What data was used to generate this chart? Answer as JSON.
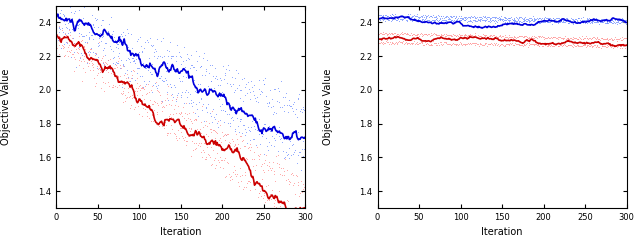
{
  "xlim": [
    0,
    300
  ],
  "ylim": [
    1.3,
    2.5
  ],
  "xlabel": "Iteration",
  "ylabel": "Objective Value",
  "xticks": [
    0,
    50,
    100,
    150,
    200,
    250,
    300
  ],
  "yticks": [
    1.4,
    1.6,
    1.8,
    2.0,
    2.2,
    2.4
  ],
  "blue_color": "#0000dd",
  "red_color": "#cc0000",
  "blue_dot_color": "#6688ff",
  "red_dot_color": "#ff8888",
  "bg_color": "#ffffff",
  "left_blue_solid_start": 2.43,
  "left_blue_solid_end": 1.72,
  "left_blue_dot_upper_start": 2.43,
  "left_blue_dot_upper_end": 1.88,
  "left_blue_dot_lower_start": 2.35,
  "left_blue_dot_lower_end": 1.6,
  "left_red_solid_start": 2.33,
  "left_red_solid_end": 1.3,
  "left_red_dot_upper_start": 2.33,
  "left_red_dot_upper_end": 1.42,
  "left_red_dot_lower_start": 2.27,
  "left_red_dot_lower_end": 1.2,
  "right_blue_solid_start": 2.425,
  "right_blue_solid_end": 2.4,
  "right_blue_dot_upper_start": 2.435,
  "right_blue_dot_upper_end": 2.408,
  "right_blue_dot_lower_start": 2.415,
  "right_blue_dot_lower_end": 2.393,
  "right_red_solid_start": 2.305,
  "right_red_solid_end": 2.265,
  "right_red_dot_upper_start": 2.33,
  "right_red_dot_upper_end": 2.295,
  "right_red_dot_lower_start": 2.275,
  "right_red_dot_lower_end": 2.252
}
